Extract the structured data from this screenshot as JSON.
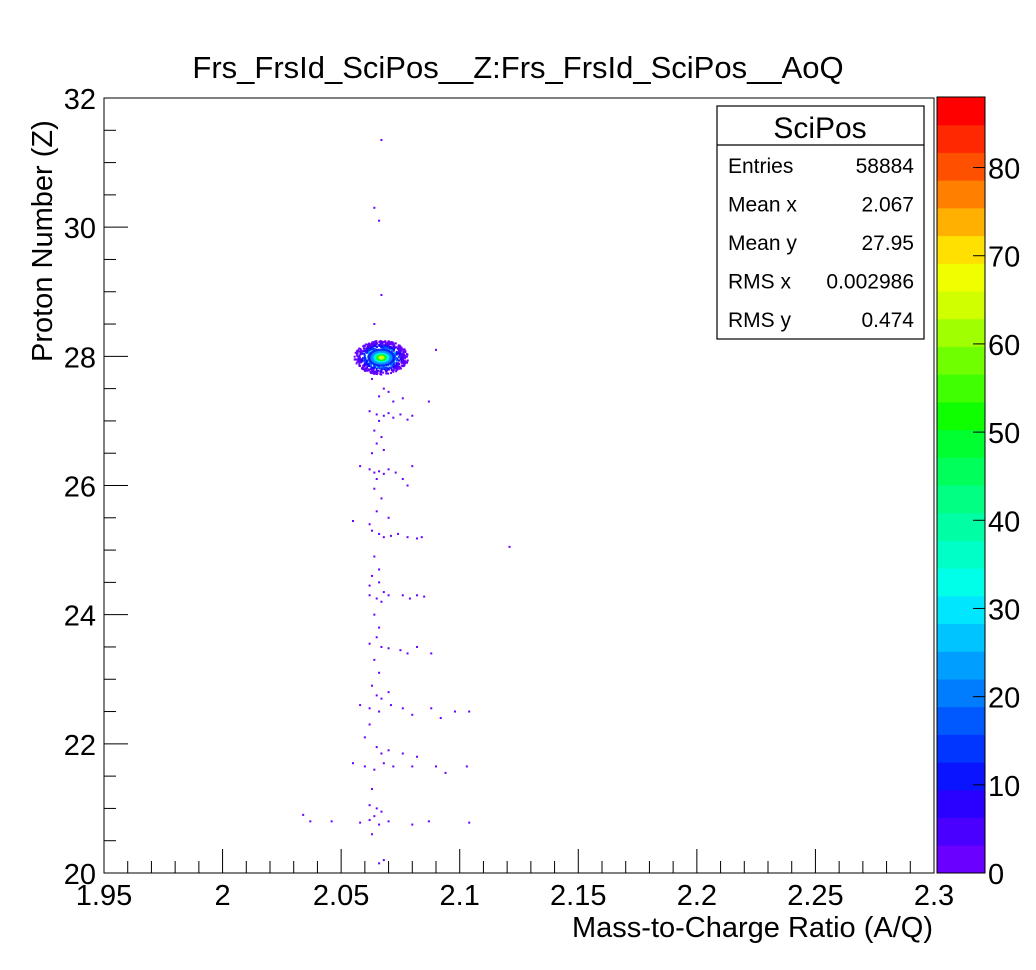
{
  "chart_data": {
    "type": "heatmap",
    "title": "Frs_FrsId_SciPos__Z:Frs_FrsId_SciPos__AoQ",
    "xlabel": "Mass-to-Charge Ratio (A/Q)",
    "ylabel": "Proton Number (Z)",
    "xlim": [
      1.95,
      2.3
    ],
    "ylim": [
      20,
      32
    ],
    "x_ticks": [
      "1.95",
      "2",
      "2.05",
      "2.1",
      "2.15",
      "2.2",
      "2.25",
      "2.3"
    ],
    "y_ticks": [
      "20",
      "22",
      "24",
      "26",
      "28",
      "30",
      "32"
    ],
    "colorbar": {
      "range": [
        0,
        88
      ],
      "ticks": [
        "0",
        "10",
        "20",
        "30",
        "40",
        "50",
        "60",
        "70",
        "80"
      ],
      "colors": [
        "#6a00ff",
        "#4a00ff",
        "#2a00ff",
        "#0a14ff",
        "#0036ff",
        "#0058ff",
        "#007cff",
        "#009eff",
        "#00c4ff",
        "#00e6ff",
        "#00ffe8",
        "#00ffc6",
        "#00ffa4",
        "#00ff82",
        "#00ff5a",
        "#00ff30",
        "#10ff00",
        "#40ff00",
        "#70ff00",
        "#a0ff00",
        "#d0ff00",
        "#f0ff00",
        "#ffe000",
        "#ffb000",
        "#ff8000",
        "#ff5000",
        "#ff2800",
        "#ff0000"
      ]
    },
    "stats_box": {
      "title": "SciPos",
      "rows": [
        {
          "label": "Entries",
          "value": "58884"
        },
        {
          "label": "Mean x",
          "value": "2.067"
        },
        {
          "label": "Mean y",
          "value": "27.95"
        },
        {
          "label": "RMS x",
          "value": "0.002986"
        },
        {
          "label": "RMS y",
          "value": "0.474"
        }
      ]
    },
    "hotspot": {
      "x": 2.067,
      "y": 27.98,
      "peak": 88
    },
    "points": [
      [
        2.067,
        31.35
      ],
      [
        2.064,
        30.3
      ],
      [
        2.066,
        30.1
      ],
      [
        2.067,
        28.95
      ],
      [
        2.064,
        28.5
      ],
      [
        2.09,
        28.1
      ],
      [
        2.063,
        27.65
      ],
      [
        2.068,
        27.5
      ],
      [
        2.07,
        27.45
      ],
      [
        2.066,
        27.38
      ],
      [
        2.072,
        27.3
      ],
      [
        2.076,
        27.35
      ],
      [
        2.087,
        27.3
      ],
      [
        2.062,
        27.15
      ],
      [
        2.065,
        27.1
      ],
      [
        2.068,
        27.08
      ],
      [
        2.07,
        27.12
      ],
      [
        2.072,
        27.05
      ],
      [
        2.075,
        27.1
      ],
      [
        2.078,
        27.02
      ],
      [
        2.08,
        27.08
      ],
      [
        2.066,
        27.0
      ],
      [
        2.064,
        26.85
      ],
      [
        2.067,
        26.75
      ],
      [
        2.065,
        26.65
      ],
      [
        2.068,
        26.55
      ],
      [
        2.063,
        26.5
      ],
      [
        2.058,
        26.3
      ],
      [
        2.062,
        26.25
      ],
      [
        2.064,
        26.2
      ],
      [
        2.066,
        26.22
      ],
      [
        2.068,
        26.18
      ],
      [
        2.07,
        26.25
      ],
      [
        2.073,
        26.2
      ],
      [
        2.076,
        26.1
      ],
      [
        2.08,
        26.3
      ],
      [
        2.078,
        26.0
      ],
      [
        2.065,
        26.1
      ],
      [
        2.064,
        25.95
      ],
      [
        2.067,
        25.8
      ],
      [
        2.065,
        25.6
      ],
      [
        2.07,
        25.5
      ],
      [
        2.062,
        25.4
      ],
      [
        2.055,
        25.45
      ],
      [
        2.063,
        25.3
      ],
      [
        2.066,
        25.25
      ],
      [
        2.068,
        25.2
      ],
      [
        2.071,
        25.22
      ],
      [
        2.074,
        25.25
      ],
      [
        2.078,
        25.2
      ],
      [
        2.082,
        25.18
      ],
      [
        2.084,
        25.2
      ],
      [
        2.121,
        25.05
      ],
      [
        2.064,
        24.9
      ],
      [
        2.066,
        24.7
      ],
      [
        2.063,
        24.6
      ],
      [
        2.062,
        24.45
      ],
      [
        2.066,
        24.5
      ],
      [
        2.068,
        24.35
      ],
      [
        2.062,
        24.3
      ],
      [
        2.065,
        24.25
      ],
      [
        2.067,
        24.2
      ],
      [
        2.07,
        24.3
      ],
      [
        2.076,
        24.3
      ],
      [
        2.079,
        24.25
      ],
      [
        2.082,
        24.3
      ],
      [
        2.085,
        24.28
      ],
      [
        2.064,
        24.0
      ],
      [
        2.066,
        23.8
      ],
      [
        2.065,
        23.65
      ],
      [
        2.062,
        23.55
      ],
      [
        2.067,
        23.5
      ],
      [
        2.07,
        23.48
      ],
      [
        2.075,
        23.45
      ],
      [
        2.078,
        23.4
      ],
      [
        2.082,
        23.5
      ],
      [
        2.088,
        23.4
      ],
      [
        2.064,
        23.3
      ],
      [
        2.066,
        23.1
      ],
      [
        2.063,
        22.9
      ],
      [
        2.065,
        22.75
      ],
      [
        2.067,
        22.7
      ],
      [
        2.07,
        22.8
      ],
      [
        2.058,
        22.6
      ],
      [
        2.062,
        22.55
      ],
      [
        2.066,
        22.5
      ],
      [
        2.071,
        22.6
      ],
      [
        2.076,
        22.55
      ],
      [
        2.08,
        22.45
      ],
      [
        2.088,
        22.55
      ],
      [
        2.092,
        22.4
      ],
      [
        2.098,
        22.5
      ],
      [
        2.104,
        22.5
      ],
      [
        2.062,
        22.3
      ],
      [
        2.06,
        22.1
      ],
      [
        2.065,
        21.95
      ],
      [
        2.067,
        21.85
      ],
      [
        2.07,
        21.9
      ],
      [
        2.076,
        21.85
      ],
      [
        2.082,
        21.8
      ],
      [
        2.055,
        21.7
      ],
      [
        2.06,
        21.65
      ],
      [
        2.064,
        21.6
      ],
      [
        2.068,
        21.7
      ],
      [
        2.072,
        21.65
      ],
      [
        2.08,
        21.65
      ],
      [
        2.09,
        21.65
      ],
      [
        2.094,
        21.55
      ],
      [
        2.103,
        21.65
      ],
      [
        2.063,
        21.3
      ],
      [
        2.062,
        21.05
      ],
      [
        2.065,
        21.0
      ],
      [
        2.067,
        20.95
      ],
      [
        2.064,
        20.88
      ],
      [
        2.034,
        20.9
      ],
      [
        2.037,
        20.8
      ],
      [
        2.046,
        20.8
      ],
      [
        2.058,
        20.78
      ],
      [
        2.062,
        20.82
      ],
      [
        2.066,
        20.75
      ],
      [
        2.07,
        20.8
      ],
      [
        2.08,
        20.75
      ],
      [
        2.087,
        20.8
      ],
      [
        2.104,
        20.78
      ],
      [
        2.063,
        20.6
      ],
      [
        2.066,
        20.15
      ],
      [
        2.068,
        20.2
      ]
    ]
  }
}
